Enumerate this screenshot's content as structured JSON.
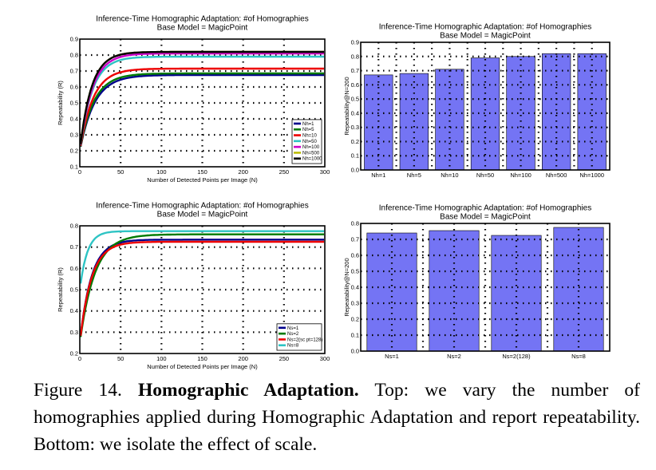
{
  "caption": {
    "label": "Figure 14.",
    "heading": "Homographic Adaptation.",
    "text": "Top: we vary the number of homographies applied during Homographic Adaptation and report repeatability. Bottom: we isolate the effect of scale."
  },
  "chart_data": [
    {
      "type": "line",
      "title": "Inference-Time Homographic Adaptation: #of Homographies",
      "subtitle": "Base Model = MagicPoint",
      "xlabel": "Number of Detected Points per Image (N)",
      "ylabel": "Repeatability (R)",
      "xlim": [
        0,
        300
      ],
      "ylim": [
        0.1,
        0.9
      ],
      "xticks": [
        0,
        50,
        100,
        150,
        200,
        250,
        300
      ],
      "yticks": [
        0.1,
        0.2,
        0.3,
        0.4,
        0.5,
        0.6,
        0.7,
        0.8,
        0.9
      ],
      "grid": true,
      "legend_position": "bottom-right",
      "series": [
        {
          "name": "Nh=1",
          "color": "#00008b",
          "y0": 0.2,
          "final": 0.675,
          "rate": 18
        },
        {
          "name": "Nh=5",
          "color": "#007a00",
          "y0": 0.2,
          "final": 0.685,
          "rate": 17
        },
        {
          "name": "Nh=10",
          "color": "#ee0000",
          "y0": 0.2,
          "final": 0.715,
          "rate": 16
        },
        {
          "name": "Nh=50",
          "color": "#2ec4c4",
          "y0": 0.2,
          "final": 0.79,
          "rate": 15
        },
        {
          "name": "Nh=100",
          "color": "#cc00cc",
          "y0": 0.2,
          "final": 0.81,
          "rate": 15
        },
        {
          "name": "Nh=500",
          "color": "#bcbc00",
          "y0": 0.2,
          "final": 0.82,
          "rate": 14
        },
        {
          "name": "Nh=1000",
          "color": "#000000",
          "y0": 0.2,
          "final": 0.82,
          "rate": 14
        }
      ]
    },
    {
      "type": "bar",
      "title": "Inference-Time Homographic Adaptation: #of Homographies",
      "subtitle": "Base Model = MagicPoint",
      "xlabel": "",
      "ylabel": "Repeatability@N=200",
      "ylim": [
        0.0,
        0.9
      ],
      "yticks": [
        0.0,
        0.1,
        0.2,
        0.3,
        0.4,
        0.5,
        0.6,
        0.7,
        0.8,
        0.9
      ],
      "grid": true,
      "bar_color": "#7474f4",
      "categories": [
        "Nh=1",
        "Nh=5",
        "Nh=10",
        "Nh=50",
        "Nh=100",
        "Nh=500",
        "Nh=1000"
      ],
      "values": [
        0.67,
        0.68,
        0.71,
        0.79,
        0.8,
        0.82,
        0.82
      ]
    },
    {
      "type": "line",
      "title": "Inference-Time Homographic Adaptation: #of Homographies",
      "subtitle": "Base Model = MagicPoint",
      "xlabel": "Number of Detected Points per Image (N)",
      "ylabel": "Repeatability (R)",
      "xlim": [
        0,
        300
      ],
      "ylim": [
        0.2,
        0.8
      ],
      "xticks": [
        0,
        50,
        100,
        150,
        200,
        250,
        300
      ],
      "yticks": [
        0.2,
        0.3,
        0.4,
        0.5,
        0.6,
        0.7,
        0.8
      ],
      "grid": true,
      "legend_position": "bottom-right",
      "series": [
        {
          "name": "Ns=1",
          "color": "#00008b",
          "y0": 0.25,
          "final": 0.735,
          "rate": 14
        },
        {
          "name": "Ns=2",
          "color": "#007a00",
          "y0": 0.25,
          "final": 0.76,
          "rate": 18
        },
        {
          "name": "Ns=2(sc pt=128)",
          "color": "#ee0000",
          "y0": 0.25,
          "final": 0.725,
          "rate": 14
        },
        {
          "name": "Ns=8",
          "color": "#2ec4c4",
          "y0": 0.5,
          "final": 0.775,
          "rate": 9
        }
      ]
    },
    {
      "type": "bar",
      "title": "Inference-Time Homographic Adaptation: #of Homographies",
      "subtitle": "Base Model = MagicPoint",
      "xlabel": "",
      "ylabel": "Repeatability@N=200",
      "ylim": [
        0.0,
        0.8
      ],
      "yticks": [
        0.0,
        0.1,
        0.2,
        0.3,
        0.4,
        0.5,
        0.6,
        0.7,
        0.8
      ],
      "grid": true,
      "bar_color": "#7474f4",
      "categories": [
        "Ns=1",
        "Ns=2",
        "Ns=2(128)",
        "Ns=8"
      ],
      "values": [
        0.74,
        0.755,
        0.725,
        0.775
      ]
    }
  ]
}
